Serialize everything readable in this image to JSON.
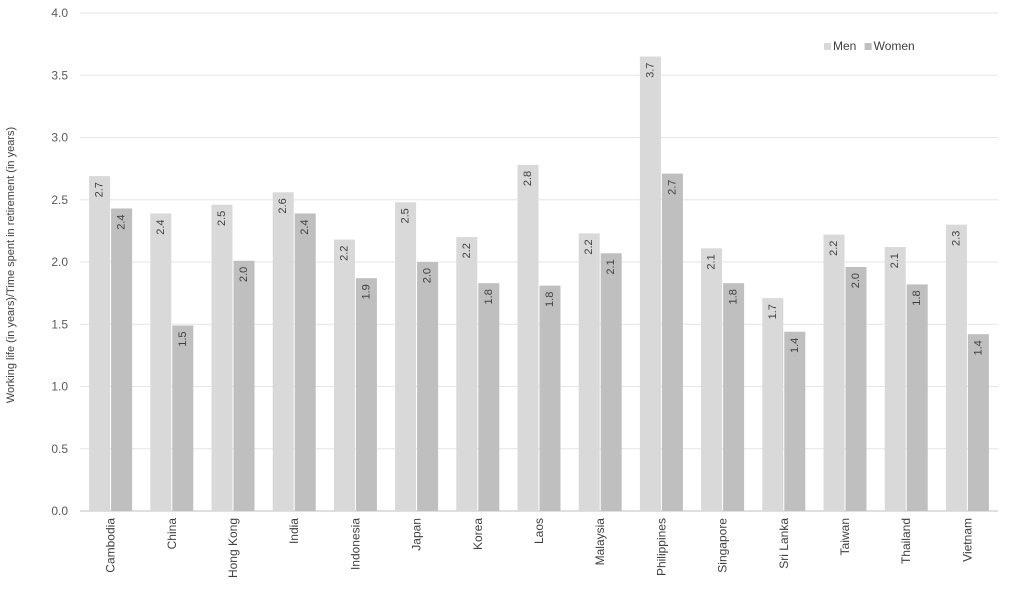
{
  "chart_data": {
    "type": "bar",
    "categories": [
      "Cambodia",
      "China",
      "Hong Kong",
      "India",
      "Indonesia",
      "Japan",
      "Korea",
      "Laos",
      "Malaysia",
      "Philippines",
      "Singapore",
      "Sri Lanka",
      "Taiwan",
      "Thailand",
      "Vietnam"
    ],
    "series": [
      {
        "name": "Men",
        "color": "#d9d9d9",
        "values": [
          2.69,
          2.39,
          2.46,
          2.56,
          2.18,
          2.48,
          2.2,
          2.78,
          2.23,
          3.65,
          2.11,
          1.71,
          2.22,
          2.12,
          2.3
        ],
        "labels": [
          "2.7",
          "2.4",
          "2.5",
          "2.6",
          "2.2",
          "2.5",
          "2.2",
          "2.8",
          "2.2",
          "3.7",
          "2.1",
          "1.7",
          "2.2",
          "2.1",
          "2.3"
        ]
      },
      {
        "name": "Women",
        "color": "#bfbfbf",
        "values": [
          2.43,
          1.49,
          2.01,
          2.39,
          1.87,
          2.0,
          1.83,
          1.81,
          2.07,
          2.71,
          1.83,
          1.44,
          1.96,
          1.82,
          1.42
        ],
        "labels": [
          "2.4",
          "1.5",
          "2.0",
          "2.4",
          "1.9",
          "2.0",
          "1.8",
          "1.8",
          "2.1",
          "2.7",
          "1.8",
          "1.4",
          "2.0",
          "1.8",
          "1.4"
        ]
      }
    ],
    "title": "",
    "xlabel": "",
    "ylabel": "Working life (in years)/Time spent in retirement (in years)",
    "ylim": [
      0,
      4.0
    ],
    "yticks": [
      "0.0",
      "0.5",
      "1.0",
      "1.5",
      "2.0",
      "2.5",
      "3.0",
      "3.5",
      "4.0"
    ],
    "grid": true,
    "legend_position": "top-right"
  }
}
